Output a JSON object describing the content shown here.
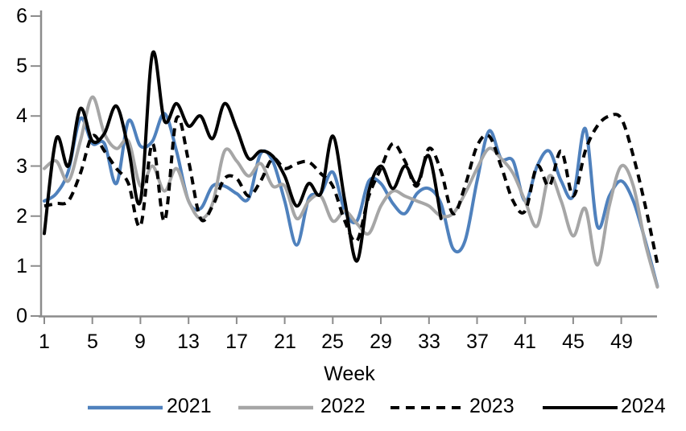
{
  "chart_data": {
    "type": "line",
    "title": "",
    "xlabel": "Week",
    "ylabel": "",
    "x_range": [
      1,
      52
    ],
    "ylim": [
      0,
      6
    ],
    "grid": false,
    "legend_position": "bottom",
    "axis_color": "#8C8C8C",
    "y_ticks": [
      0,
      1,
      2,
      3,
      4,
      5,
      6
    ],
    "y_tick_labels": [
      "0",
      "1",
      "2",
      "3",
      "4",
      "5",
      "6"
    ],
    "x_ticks": [
      1,
      5,
      9,
      13,
      17,
      21,
      25,
      29,
      33,
      37,
      41,
      45,
      49
    ],
    "x_tick_labels": [
      "1",
      "5",
      "9",
      "13",
      "17",
      "21",
      "25",
      "29",
      "33",
      "37",
      "41",
      "45",
      "49"
    ],
    "series": [
      {
        "name": "2021",
        "color": "#4F81BD",
        "style": "solid",
        "start_week": 1,
        "values": [
          2.3,
          2.45,
          2.9,
          3.95,
          3.45,
          3.45,
          2.65,
          3.9,
          3.4,
          3.5,
          4.05,
          3.3,
          2.3,
          2.15,
          2.6,
          2.6,
          2.45,
          2.35,
          3.25,
          3.1,
          2.3,
          1.42,
          2.35,
          2.45,
          2.88,
          2.1,
          1.9,
          2.7,
          2.65,
          2.25,
          2.05,
          2.45,
          2.55,
          2.25,
          1.35,
          1.5,
          2.7,
          3.7,
          3.15,
          3.1,
          2.3,
          3.0,
          3.3,
          2.7,
          2.4,
          3.75,
          1.8,
          2.4,
          2.7,
          2.3,
          1.5,
          0.6
        ]
      },
      {
        "name": "2022",
        "color": "#A6A6A6",
        "style": "solid",
        "start_week": 1,
        "values": [
          2.95,
          3.1,
          2.7,
          3.5,
          4.38,
          3.65,
          3.35,
          3.5,
          2.6,
          3.0,
          2.5,
          2.95,
          2.3,
          1.95,
          2.25,
          3.3,
          3.1,
          2.8,
          3.05,
          2.6,
          2.6,
          1.95,
          2.3,
          2.4,
          1.9,
          2.1,
          1.85,
          1.65,
          2.2,
          2.5,
          2.4,
          2.3,
          2.2,
          2.0,
          2.05,
          2.45,
          2.95,
          3.35,
          3.15,
          2.85,
          2.3,
          1.8,
          2.8,
          2.3,
          1.6,
          2.15,
          1.02,
          2.2,
          3.0,
          2.6,
          1.45,
          0.58
        ]
      },
      {
        "name": "2023",
        "color": "#000000",
        "style": "dashed",
        "start_week": 1,
        "values": [
          2.2,
          2.25,
          2.3,
          2.85,
          3.6,
          3.3,
          2.95,
          2.65,
          1.8,
          3.45,
          1.9,
          3.95,
          3.1,
          1.95,
          2.2,
          2.75,
          2.75,
          2.4,
          2.7,
          3.15,
          2.95,
          3.05,
          3.08,
          2.85,
          2.6,
          1.9,
          1.5,
          2.4,
          2.95,
          3.45,
          3.1,
          2.6,
          3.35,
          2.9,
          2.05,
          2.6,
          3.4,
          3.6,
          3.0,
          2.3,
          2.1,
          3.0,
          2.6,
          3.3,
          2.4,
          3.3,
          3.8,
          4.0,
          3.95,
          3.2,
          2.2,
          1.05
        ]
      },
      {
        "name": "2024",
        "color": "#000000",
        "style": "solid",
        "start_week": 1,
        "values": [
          1.65,
          3.55,
          3.0,
          4.15,
          3.5,
          3.65,
          4.2,
          3.35,
          2.3,
          5.25,
          3.9,
          4.25,
          3.8,
          4.0,
          3.55,
          4.25,
          3.75,
          3.15,
          3.3,
          3.2,
          2.8,
          2.2,
          2.65,
          2.45,
          3.6,
          2.3,
          1.1,
          2.5,
          3.0,
          2.55,
          3.0,
          2.65,
          3.2,
          1.95
        ]
      }
    ]
  }
}
